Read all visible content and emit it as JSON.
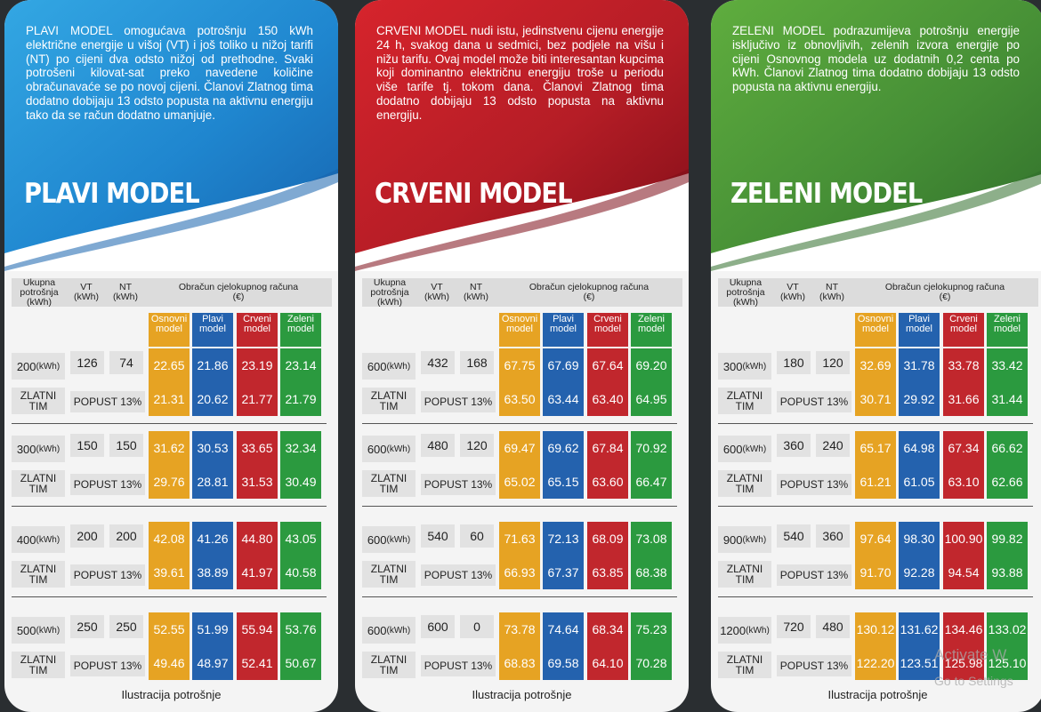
{
  "colors": {
    "blue": "#2462ae",
    "red": "#c1272d",
    "green": "#2b9a3f",
    "orange": "#e6a323"
  },
  "header": {
    "total_label": "Ukupna potrošnja (kWh)",
    "vt_label": "VT (kWh)",
    "nt_label": "NT (kWh)",
    "calc_label": "Obračun cjelokupnog računa",
    "calc_unit": "(€)"
  },
  "model_labels": {
    "osnovni": "Osnovni model",
    "plavi": "Plavi model",
    "crveni": "Crveni model",
    "zeleni": "Zeleni model"
  },
  "zlatni_label": "ZLATNI TIM",
  "popust_label": "POPUST 13%",
  "footer": "Ilustracija potrošnje",
  "cards": [
    {
      "title": "PLAVI MODEL",
      "desc": "PLAVI MODEL  omogućava potrošnju 150 kWh električne energije u višoj (VT) i još toliko u nižoj tarifi (NT) po cijeni dva odsto nižoj od prethodne. Svaki potrošeni kilovat-sat preko navedene količine obračunavaće se po novoj cijeni. Članovi Zlatnog tima dodatno dobijaju 13 odsto popusta na aktivnu energiju  tako da se račun dodatno umanjuje.",
      "groups": [
        {
          "total": "200",
          "vt": "126",
          "nt": "74",
          "row1": [
            "22.65",
            "21.86",
            "23.19",
            "23.14"
          ],
          "row2": [
            "21.31",
            "20.62",
            "21.77",
            "21.79"
          ]
        },
        {
          "total": "300",
          "vt": "150",
          "nt": "150",
          "row1": [
            "31.62",
            "30.53",
            "33.65",
            "32.34"
          ],
          "row2": [
            "29.76",
            "28.81",
            "31.53",
            "30.49"
          ]
        },
        {
          "total": "400",
          "vt": "200",
          "nt": "200",
          "row1": [
            "42.08",
            "41.26",
            "44.80",
            "43.05"
          ],
          "row2": [
            "39.61",
            "38.89",
            "41.97",
            "40.58"
          ]
        },
        {
          "total": "500",
          "vt": "250",
          "nt": "250",
          "row1": [
            "52.55",
            "51.99",
            "55.94",
            "53.76"
          ],
          "row2": [
            "49.46",
            "48.97",
            "52.41",
            "50.67"
          ]
        }
      ]
    },
    {
      "title": "CRVENI MODEL",
      "desc": "CRVENI MODEL  nudi istu, jedinstvenu cijenu energije 24 h, svakog dana u sedmici, bez podjele na višu i nižu tarifu. Ovaj model može biti interesantan kupcima koji dominantno električnu energiju troše u periodu više tarife tj. tokom dana. Članovi Zlatnog tima dodatno dobijaju 13 odsto popusta na aktivnu energiju.",
      "groups": [
        {
          "total": "600",
          "vt": "432",
          "nt": "168",
          "row1": [
            "67.75",
            "67.69",
            "67.64",
            "69.20"
          ],
          "row2": [
            "63.50",
            "63.44",
            "63.40",
            "64.95"
          ]
        },
        {
          "total": "600",
          "vt": "480",
          "nt": "120",
          "row1": [
            "69.47",
            "69.62",
            "67.84",
            "70.92"
          ],
          "row2": [
            "65.02",
            "65.15",
            "63.60",
            "66.47"
          ]
        },
        {
          "total": "600",
          "vt": "540",
          "nt": "60",
          "row1": [
            "71.63",
            "72.13",
            "68.09",
            "73.08"
          ],
          "row2": [
            "66.93",
            "67.37",
            "63.85",
            "68.38"
          ]
        },
        {
          "total": "600",
          "vt": "600",
          "nt": "0",
          "row1": [
            "73.78",
            "74.64",
            "68.34",
            "75.23"
          ],
          "row2": [
            "68.83",
            "69.58",
            "64.10",
            "70.28"
          ]
        }
      ]
    },
    {
      "title": "ZELENI MODEL",
      "desc": "ZELENI MODEL podrazumijeva potrošnju energije isključivo iz obnovljivih, zelenih izvora energije po cijeni Osnovnog modela uz dodatnih 0,2 centa po kWh. Članovi Zlatnog tima dodatno dobijaju 13 odsto popusta na aktivnu energiju.",
      "groups": [
        {
          "total": "300",
          "vt": "180",
          "nt": "120",
          "row1": [
            "32.69",
            "31.78",
            "33.78",
            "33.42"
          ],
          "row2": [
            "30.71",
            "29.92",
            "31.66",
            "31.44"
          ]
        },
        {
          "total": "600",
          "vt": "360",
          "nt": "240",
          "row1": [
            "65.17",
            "64.98",
            "67.34",
            "66.62"
          ],
          "row2": [
            "61.21",
            "61.05",
            "63.10",
            "62.66"
          ]
        },
        {
          "total": "900",
          "vt": "540",
          "nt": "360",
          "row1": [
            "97.64",
            "98.30",
            "100.90",
            "99.82"
          ],
          "row2": [
            "91.70",
            "92.28",
            "94.54",
            "93.88"
          ]
        },
        {
          "total": "1200",
          "vt": "720",
          "nt": "480",
          "row1": [
            "130.12",
            "131.62",
            "134.46",
            "133.02"
          ],
          "row2": [
            "122.20",
            "123.51",
            "125.98",
            "125.10"
          ]
        }
      ]
    }
  ],
  "unit_suffix": "(kWh)",
  "watermark": {
    "line1": "Activate W",
    "line2": "Go to Settings"
  }
}
